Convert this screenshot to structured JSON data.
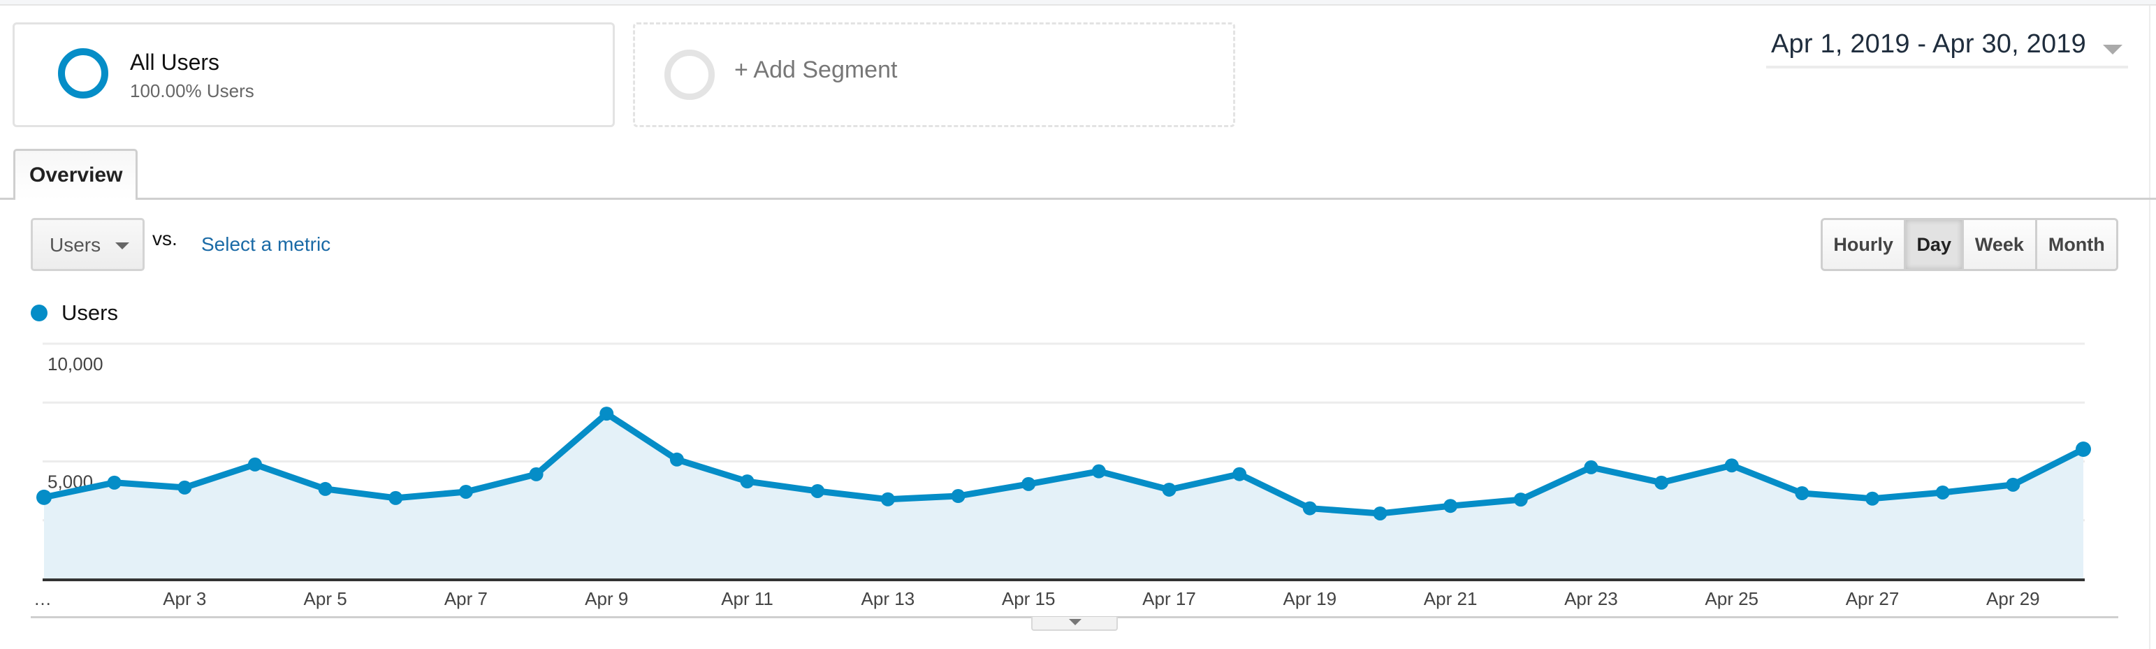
{
  "segments": {
    "active": {
      "title": "All Users",
      "subtitle": "100.00% Users",
      "color": "#058dc7"
    },
    "add_label": "+ Add Segment"
  },
  "date_range": {
    "label": "Apr 1, 2019 - Apr 30, 2019"
  },
  "tabs": [
    {
      "label": "Overview",
      "active": true
    }
  ],
  "metric_selector": {
    "primary": "Users",
    "vs_label": "vs.",
    "secondary_link": "Select a metric"
  },
  "granularity": {
    "options": [
      "Hourly",
      "Day",
      "Week",
      "Month"
    ],
    "selected": "Day"
  },
  "legend": {
    "label": "Users",
    "color": "#058dc7"
  },
  "chart_data": {
    "type": "area",
    "title": "",
    "xlabel": "",
    "ylabel": "",
    "series": [
      {
        "name": "Users",
        "color": "#058dc7",
        "values": [
          3475,
          4100,
          3890,
          4870,
          3830,
          3445,
          3710,
          4455,
          7030,
          5080,
          4150,
          3740,
          3390,
          3530,
          4040,
          4580,
          3800,
          4460,
          3010,
          2790,
          3110,
          3380,
          4750,
          4100,
          4830,
          3650,
          3420,
          3680,
          4010,
          5520
        ]
      }
    ],
    "x": [
      "Apr 1",
      "Apr 2",
      "Apr 3",
      "Apr 4",
      "Apr 5",
      "Apr 6",
      "Apr 7",
      "Apr 8",
      "Apr 9",
      "Apr 10",
      "Apr 11",
      "Apr 12",
      "Apr 13",
      "Apr 14",
      "Apr 15",
      "Apr 16",
      "Apr 17",
      "Apr 18",
      "Apr 19",
      "Apr 20",
      "Apr 21",
      "Apr 22",
      "Apr 23",
      "Apr 24",
      "Apr 25",
      "Apr 26",
      "Apr 27",
      "Apr 28",
      "Apr 29",
      "Apr 30"
    ],
    "x_tick_labels": [
      {
        "index": 0,
        "label": "…"
      },
      {
        "index": 2,
        "label": "Apr 3"
      },
      {
        "index": 4,
        "label": "Apr 5"
      },
      {
        "index": 6,
        "label": "Apr 7"
      },
      {
        "index": 8,
        "label": "Apr 9"
      },
      {
        "index": 10,
        "label": "Apr 11"
      },
      {
        "index": 12,
        "label": "Apr 13"
      },
      {
        "index": 14,
        "label": "Apr 15"
      },
      {
        "index": 16,
        "label": "Apr 17"
      },
      {
        "index": 18,
        "label": "Apr 19"
      },
      {
        "index": 20,
        "label": "Apr 21"
      },
      {
        "index": 22,
        "label": "Apr 23"
      },
      {
        "index": 24,
        "label": "Apr 25"
      },
      {
        "index": 26,
        "label": "Apr 27"
      },
      {
        "index": 28,
        "label": "Apr 29"
      }
    ],
    "y_tick_labels": [
      {
        "value": 10000,
        "label": "10,000"
      },
      {
        "value": 5000,
        "label": "5,000"
      }
    ],
    "gridlines": [
      0,
      2500,
      5000,
      7500,
      10000
    ],
    "ylim": [
      0,
      10000
    ],
    "grid": true,
    "legend_position": "top-left",
    "fill_color": "#e4f1f8"
  }
}
